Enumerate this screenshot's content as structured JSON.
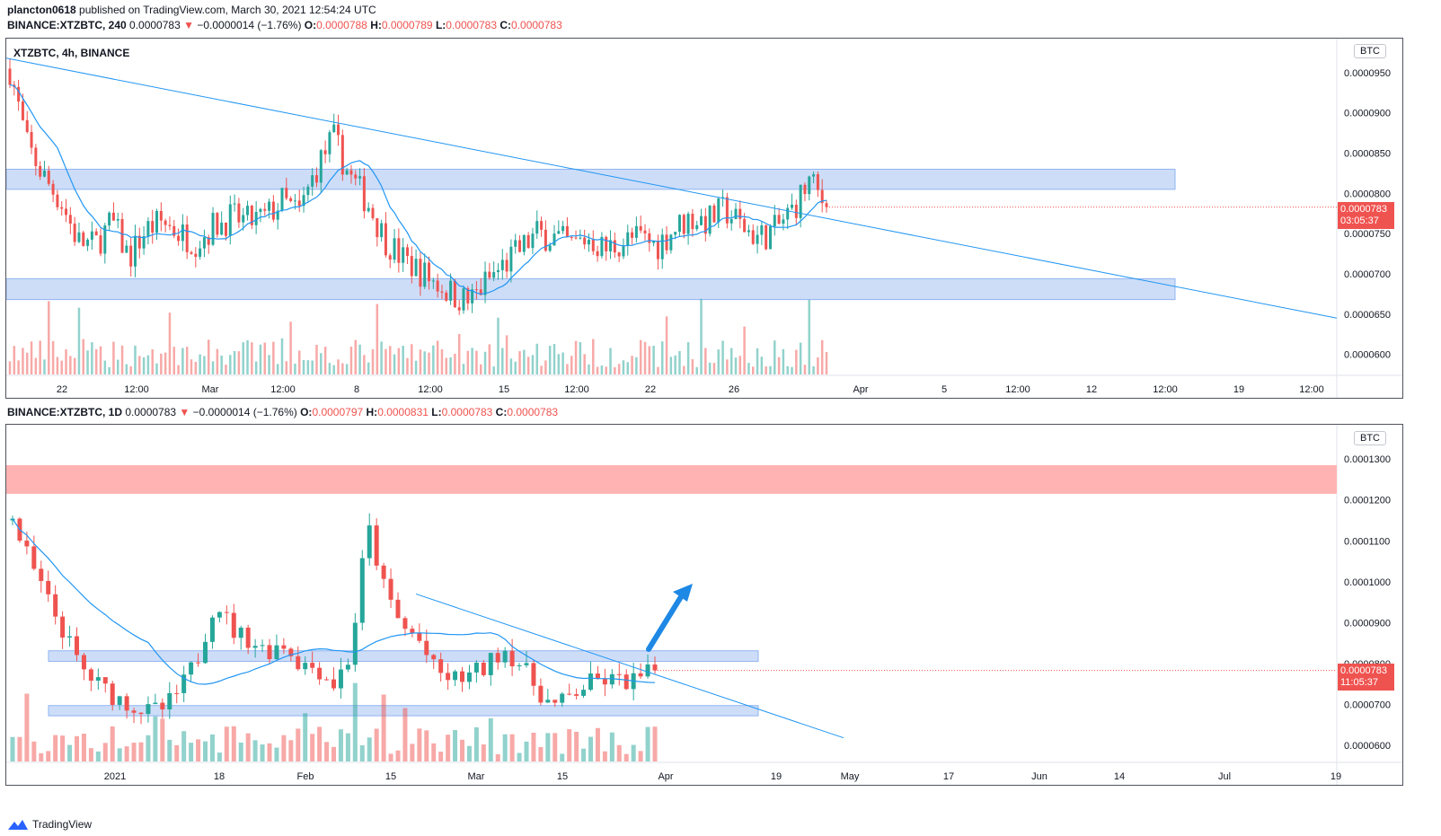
{
  "header": {
    "user": "plancton0618",
    "published": "published on TradingView.com, March 30, 2021 12:54:24 UTC"
  },
  "top": {
    "symbol_line": {
      "symbol": "BINANCE:XTZBTC, 240",
      "last": "0.0000783",
      "arrow": "▼",
      "change": "−0.0000014 (−1.76%)",
      "o_label": "O:",
      "o": "0.0000788",
      "h_label": "H:",
      "h": "0.0000789",
      "l_label": "L:",
      "l": "0.0000783",
      "c_label": "C:",
      "c": "0.0000783"
    },
    "panel_title": "XTZBTC, 4h, BINANCE",
    "currency": "BTC",
    "price_tag": "0.0000783",
    "countdown": "03:05:37"
  },
  "bottom": {
    "symbol_line": {
      "symbol": "BINANCE:XTZBTC, 1D",
      "last": "0.0000783",
      "arrow": "▼",
      "change": "−0.0000014 (−1.76%)",
      "o_label": "O:",
      "o": "0.0000797",
      "h_label": "H:",
      "h": "0.0000831",
      "l_label": "L:",
      "l": "0.0000783",
      "c_label": "C:",
      "c": "0.0000783"
    },
    "currency": "BTC",
    "price_tag": "0.0000783",
    "countdown": "11:05:37"
  },
  "footer": {
    "brand": "TradingView"
  },
  "colors": {
    "up": "#26a69a",
    "down": "#ef5350",
    "ma": "#2196f3",
    "zone": "#90b4f0",
    "resistance": "#ffb3b3",
    "trend": "#2196f3"
  },
  "chart_data": [
    {
      "type": "candlestick",
      "title": "XTZBTC, 4h, BINANCE",
      "interval": "240",
      "ylim": [
        5.85e-05,
        9.7e-05
      ],
      "y_ticks": [
        "0.0000950",
        "0.0000900",
        "0.0000850",
        "0.0000800",
        "0.0000750",
        "0.0000700",
        "0.0000650",
        "0.0000600"
      ],
      "x_ticks": [
        "22",
        "12:00",
        "Mar",
        "12:00",
        "8",
        "12:00",
        "15",
        "12:00",
        "22",
        "26",
        "Apr",
        "5",
        "12:00",
        "12",
        "12:00",
        "19",
        "12:00"
      ],
      "close_path": [
        9.55e-05,
        8.6e-05,
        8.2e-05,
        7.9e-05,
        7.4e-05,
        7.35e-05,
        7.65e-05,
        7.2e-05,
        7.55e-05,
        7.65e-05,
        7.5e-05,
        7.4e-05,
        7.6e-05,
        7.7e-05,
        7.65e-05,
        7.7e-05,
        7.9e-05,
        7.75e-05,
        8.3e-05,
        8.7e-05,
        8.2e-05,
        7.9e-05,
        7.45e-05,
        7.2e-05,
        7.05e-05,
        6.9e-05,
        6.75e-05,
        6.65e-05,
        6.9e-05,
        7.1e-05,
        7.3e-05,
        7.5e-05,
        7.45e-05,
        7.35e-05,
        7.45e-05,
        7.3e-05,
        7.4e-05,
        7.45e-05,
        7.35e-05,
        7.55e-05,
        7.7e-05,
        7.65e-05,
        7.8e-05,
        7.6e-05,
        7.45e-05,
        7.55e-05,
        7.8e-05,
        8.15e-05,
        7.83e-05
      ],
      "zones": [
        [
          8.05e-05,
          8.3e-05
        ],
        [
          6.68e-05,
          6.94e-05
        ]
      ],
      "trendline": [
        [
          9.68e-05,
          6.45e-05
        ]
      ],
      "last_price": 7.83e-05
    },
    {
      "type": "candlestick",
      "title": "BINANCE:XTZBTC, 1D",
      "interval": "1D",
      "ylim": [
        5.8e-05,
        0.000134
      ],
      "y_ticks": [
        "0.0001300",
        "0.0001200",
        "0.0001100",
        "0.0001000",
        "0.0000900",
        "0.0000800",
        "0.0000700",
        "0.0000600"
      ],
      "x_ticks": [
        "2021",
        "18",
        "Feb",
        "15",
        "Mar",
        "15",
        "Apr",
        "19",
        "May",
        "17",
        "Jun",
        "14",
        "Jul",
        "19"
      ],
      "close_path": [
        0.000115,
        0.000105,
        9.6e-05,
        8.8e-05,
        7.9e-05,
        7.5e-05,
        7.2e-05,
        7e-05,
        6.8e-05,
        6.9e-05,
        7.4e-05,
        8.2e-05,
        9.6e-05,
        8.8e-05,
        8.6e-05,
        8.3e-05,
        8.5e-05,
        8e-05,
        7.9e-05,
        7.5e-05,
        8.2e-05,
        0.000114,
        9.8e-05,
        8.9e-05,
        8.6e-05,
        7.8e-05,
        7.6e-05,
        7.7e-05,
        7.9e-05,
        8.4e-05,
        8e-05,
        7.4e-05,
        6.9e-05,
        7.2e-05,
        7.5e-05,
        7.6e-05,
        7.55e-05,
        7.6e-05,
        7.83e-05
      ],
      "zones": [
        [
          8.05e-05,
          8.31e-05
        ],
        [
          6.72e-05,
          6.97e-05
        ]
      ],
      "resistance_zone": [
        0.0001215,
        0.0001285
      ],
      "trendline": [
        [
          9.7e-05,
          6.18e-05
        ]
      ],
      "last_price": 7.83e-05
    }
  ]
}
